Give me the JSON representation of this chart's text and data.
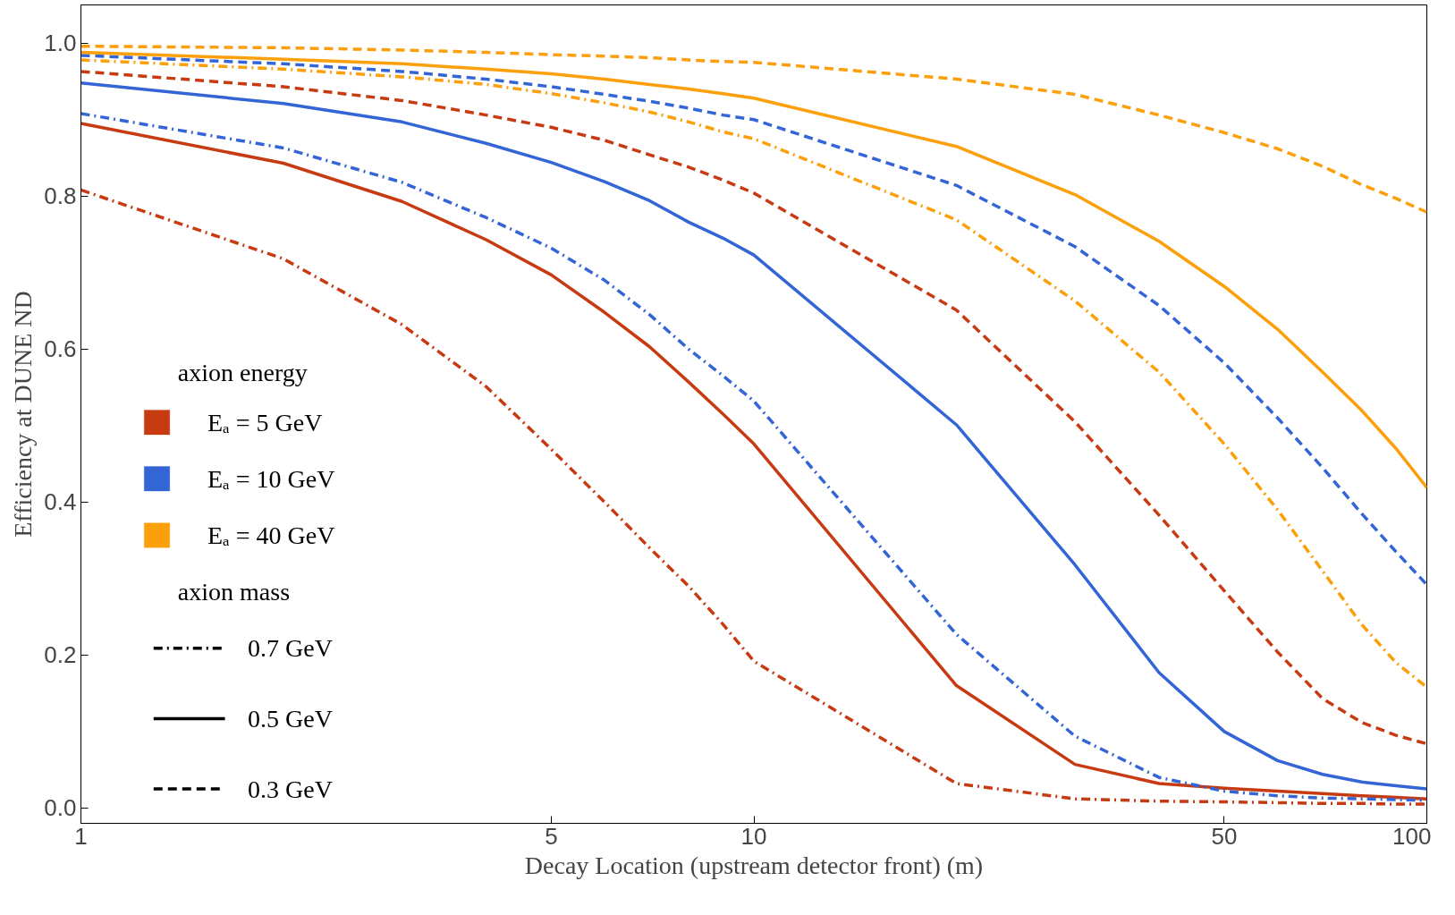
{
  "chart_data": {
    "type": "line",
    "xlabel": "Decay Location (upstream detector front) (m)",
    "ylabel": "Efficiency at DUNE ND",
    "legend_title": "axion energy",
    "annotations": [
      "axion mass",
      "0.7 GeV",
      "0.5 GeV",
      "0.3 GeV"
    ],
    "log": "x",
    "xlim": [
      1,
      100
    ],
    "xticks": [
      1,
      5,
      10,
      50,
      100
    ],
    "ylim": [
      -0.02,
      1.05
    ],
    "yticks": [
      {
        "value": 0,
        "label": "0.0"
      },
      0.2,
      0.4,
      0.6,
      0.8,
      {
        "value": 1,
        "label": "1.0"
      }
    ],
    "grid": false,
    "legend": "left",
    "marker": "none",
    "x": [
      1,
      2,
      3,
      4,
      5,
      6,
      7,
      8,
      9,
      10,
      20,
      30,
      40,
      50,
      60,
      70,
      80,
      90,
      100
    ],
    "series": [
      {
        "name": "Eₐ = 5 GeV",
        "color": "#c73a12",
        "line_style": "dashdot",
        "values": [
          0.808,
          0.718,
          0.632,
          0.551,
          0.469,
          0.4,
          0.34,
          0.29,
          0.24,
          0.192,
          0.032,
          0.012,
          0.009,
          0.008,
          0.007,
          0.006,
          0.006,
          0.005,
          0.005
        ]
      },
      {
        "color": "#c73a12",
        "line_style": "solid",
        "values": [
          0.895,
          0.843,
          0.793,
          0.743,
          0.697,
          0.648,
          0.603,
          0.557,
          0.515,
          0.476,
          0.16,
          0.057,
          0.032,
          0.026,
          0.022,
          0.019,
          0.016,
          0.014,
          0.012
        ]
      },
      {
        "color": "#c73a12",
        "line_style": "dashed",
        "values": [
          0.963,
          0.943,
          0.925,
          0.906,
          0.89,
          0.873,
          0.854,
          0.838,
          0.821,
          0.804,
          0.651,
          0.505,
          0.383,
          0.284,
          0.204,
          0.143,
          0.112,
          0.095,
          0.084
        ]
      },
      {
        "name": "Eₐ = 10 GeV",
        "color": "#3465d6",
        "line_style": "dashdot",
        "values": [
          0.908,
          0.863,
          0.818,
          0.772,
          0.732,
          0.69,
          0.645,
          0.6,
          0.565,
          0.532,
          0.227,
          0.094,
          0.04,
          0.022,
          0.016,
          0.013,
          0.012,
          0.011,
          0.01
        ]
      },
      {
        "color": "#3465d6",
        "line_style": "solid",
        "values": [
          0.948,
          0.921,
          0.897,
          0.869,
          0.844,
          0.819,
          0.794,
          0.766,
          0.745,
          0.723,
          0.501,
          0.318,
          0.177,
          0.1,
          0.062,
          0.044,
          0.034,
          0.029,
          0.025
        ]
      },
      {
        "color": "#3465d6",
        "line_style": "dashed",
        "values": [
          0.984,
          0.973,
          0.963,
          0.953,
          0.943,
          0.933,
          0.924,
          0.915,
          0.906,
          0.9,
          0.814,
          0.734,
          0.657,
          0.582,
          0.51,
          0.445,
          0.385,
          0.335,
          0.292
        ]
      },
      {
        "name": "Eₐ = 40 GeV",
        "color": "#fb9f0a",
        "line_style": "dashdot",
        "values": [
          0.978,
          0.966,
          0.956,
          0.946,
          0.934,
          0.922,
          0.91,
          0.897,
          0.884,
          0.875,
          0.769,
          0.663,
          0.57,
          0.476,
          0.39,
          0.31,
          0.24,
          0.19,
          0.158
        ]
      },
      {
        "color": "#fb9f0a",
        "line_style": "solid",
        "values": [
          0.988,
          0.979,
          0.973,
          0.966,
          0.96,
          0.953,
          0.946,
          0.94,
          0.934,
          0.928,
          0.865,
          0.802,
          0.741,
          0.682,
          0.626,
          0.57,
          0.52,
          0.47,
          0.419
        ]
      },
      {
        "color": "#fb9f0a",
        "line_style": "dashed",
        "values": [
          0.996,
          0.994,
          0.991,
          0.988,
          0.985,
          0.983,
          0.981,
          0.978,
          0.976,
          0.975,
          0.953,
          0.933,
          0.906,
          0.883,
          0.862,
          0.839,
          0.815,
          0.797,
          0.779
        ]
      }
    ]
  }
}
